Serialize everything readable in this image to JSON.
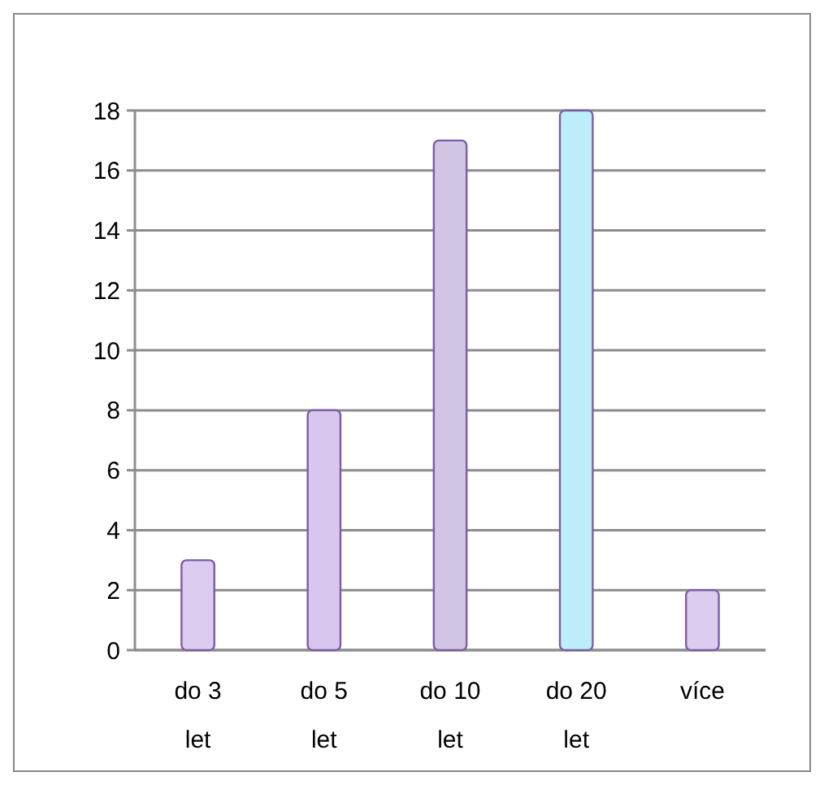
{
  "chart_data": {
    "type": "bar",
    "categories": [
      "do 3 let",
      "do 5 let",
      "do 10 let",
      "do 20 let",
      "více"
    ],
    "values": [
      3,
      8,
      17,
      18,
      2
    ],
    "colors": [
      "#dccdf0",
      "#d8c6ef",
      "#d0c5e2",
      "#bdeef9",
      "#dccdf0"
    ],
    "ylim": [
      0,
      18
    ],
    "yticks": [
      0,
      2,
      4,
      6,
      8,
      10,
      12,
      14,
      16,
      18
    ],
    "grid": "y"
  }
}
